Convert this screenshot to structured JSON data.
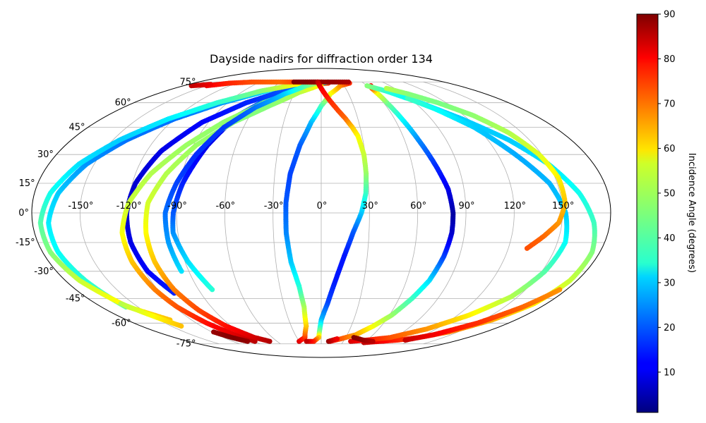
{
  "chart_data": {
    "type": "scatter",
    "projection": "mollweide",
    "title": "Dayside nadirs for diffraction order 134",
    "grid": true,
    "x_ticks": [
      "-150°",
      "-120°",
      "-90°",
      "-60°",
      "-30°",
      "0°",
      "30°",
      "60°",
      "90°",
      "120°",
      "150°"
    ],
    "y_ticks": [
      "75°",
      "60°",
      "45°",
      "30°",
      "15°",
      "0°",
      "-15°",
      "-30°",
      "-45°",
      "-60°",
      "-75°"
    ],
    "colorbar": {
      "label": "Incidence Angle (degrees)",
      "range": [
        1,
        90
      ],
      "ticks": [
        "10",
        "20",
        "30",
        "40",
        "50",
        "60",
        "70",
        "80",
        "90"
      ],
      "colormap": "jet"
    },
    "series": [
      {
        "points": [
          [
            -80,
            -40,
            38
          ],
          [
            -88,
            -25,
            32
          ],
          [
            -93,
            -10,
            25
          ],
          [
            -92,
            0,
            20
          ],
          [
            -88,
            15,
            15
          ],
          [
            -80,
            35,
            10
          ],
          [
            -70,
            52,
            12
          ],
          [
            -55,
            62,
            25
          ],
          [
            -35,
            70,
            42
          ],
          [
            -10,
            73,
            60
          ],
          [
            10,
            74,
            75
          ]
        ]
      },
      {
        "points": [
          [
            -160,
            -50,
            42
          ],
          [
            -166,
            -35,
            38
          ],
          [
            -170,
            -20,
            35
          ],
          [
            -170,
            -5,
            33
          ],
          [
            -165,
            10,
            30
          ],
          [
            -155,
            25,
            25
          ],
          [
            -140,
            38,
            22
          ],
          [
            -120,
            50,
            22
          ],
          [
            -95,
            60,
            25
          ],
          [
            -60,
            69,
            32
          ],
          [
            -20,
            73,
            48
          ],
          [
            10,
            75,
            62
          ]
        ]
      },
      {
        "points": [
          [
            -110,
            -42,
            15
          ],
          [
            -118,
            -30,
            12
          ],
          [
            -121,
            -15,
            10
          ],
          [
            -121,
            0,
            8
          ],
          [
            -118,
            15,
            8
          ],
          [
            -110,
            32,
            10
          ],
          [
            -95,
            48,
            12
          ],
          [
            -72,
            60,
            15
          ],
          [
            -42,
            69,
            20
          ],
          [
            -10,
            73,
            28
          ],
          [
            10,
            75,
            35
          ]
        ]
      },
      {
        "points": [
          [
            -90,
            -73,
            85
          ],
          [
            -100,
            -68,
            82
          ],
          [
            -110,
            -60,
            78
          ],
          [
            -118,
            -50,
            72
          ],
          [
            -122,
            -40,
            68
          ],
          [
            -125,
            -25,
            62
          ],
          [
            -125,
            -10,
            56
          ],
          [
            -120,
            5,
            52
          ],
          [
            -110,
            20,
            50
          ],
          [
            -95,
            35,
            48
          ],
          [
            -78,
            48,
            47
          ],
          [
            -55,
            60,
            47
          ],
          [
            -30,
            68,
            48
          ],
          [
            -5,
            73,
            52
          ]
        ]
      },
      {
        "points": [
          [
            -140,
            -58,
            62
          ],
          [
            -158,
            -50,
            58
          ],
          [
            -170,
            -35,
            52
          ],
          [
            -175,
            -20,
            46
          ],
          [
            -175,
            -5,
            42
          ],
          [
            -170,
            10,
            36
          ],
          [
            -160,
            25,
            32
          ],
          [
            -145,
            38,
            30
          ],
          [
            -125,
            50,
            33
          ],
          [
            -100,
            60,
            38
          ],
          [
            -70,
            68,
            46
          ],
          [
            -35,
            73,
            56
          ],
          [
            0,
            75,
            65
          ]
        ]
      },
      {
        "points": [
          [
            -70,
            -73,
            86
          ],
          [
            -82,
            -70,
            83
          ],
          [
            -95,
            -62,
            78
          ],
          [
            -103,
            -52,
            73
          ],
          [
            -108,
            -40,
            68
          ],
          [
            -110,
            -25,
            62
          ],
          [
            -110,
            -10,
            57
          ],
          [
            -108,
            5,
            53
          ],
          [
            -100,
            20,
            50
          ],
          [
            -88,
            35,
            48
          ],
          [
            -70,
            48,
            46
          ],
          [
            -48,
            58,
            46
          ],
          [
            -25,
            67,
            50
          ],
          [
            0,
            73,
            58
          ]
        ]
      },
      {
        "points": [
          [
            -30,
            -73,
            82
          ],
          [
            -20,
            -70,
            75
          ],
          [
            -15,
            -62,
            62
          ],
          [
            -14,
            -50,
            50
          ],
          [
            -16,
            -38,
            38
          ],
          [
            -20,
            -25,
            30
          ],
          [
            -22,
            -10,
            24
          ],
          [
            -22,
            5,
            20
          ],
          [
            -20,
            20,
            18
          ],
          [
            -15,
            35,
            20
          ],
          [
            -8,
            48,
            28
          ],
          [
            0,
            58,
            40
          ],
          [
            10,
            66,
            55
          ],
          [
            25,
            72,
            66
          ],
          [
            40,
            74,
            75
          ]
        ]
      },
      {
        "points": [
          [
            -95,
            -30,
            32
          ],
          [
            -97,
            -15,
            26
          ],
          [
            -97,
            0,
            22
          ],
          [
            -92,
            15,
            18
          ],
          [
            -85,
            30,
            16
          ],
          [
            -75,
            45,
            17
          ],
          [
            -60,
            57,
            22
          ],
          [
            -40,
            66,
            30
          ],
          [
            -20,
            72,
            42
          ],
          [
            0,
            75,
            52
          ]
        ]
      },
      {
        "points": [
          [
            -150,
            72,
            80
          ],
          [
            -130,
            74,
            76
          ],
          [
            -100,
            75,
            72
          ],
          [
            -60,
            75,
            70
          ],
          [
            -20,
            75,
            75
          ],
          [
            -5,
            75,
            82
          ]
        ]
      },
      {
        "points": [
          [
            -40,
            75,
            90
          ],
          [
            -20,
            75,
            90
          ],
          [
            0,
            75,
            88
          ],
          [
            20,
            75,
            88
          ],
          [
            40,
            75,
            86
          ]
        ]
      },
      {
        "points": [
          [
            -5,
            75,
            85
          ],
          [
            0,
            70,
            80
          ],
          [
            5,
            65,
            78
          ],
          [
            10,
            60,
            75
          ],
          [
            15,
            55,
            73
          ],
          [
            20,
            50,
            70
          ],
          [
            24,
            45,
            62
          ],
          [
            27,
            40,
            57
          ],
          [
            29,
            30,
            52
          ],
          [
            29,
            20,
            48
          ],
          [
            28,
            10,
            40
          ],
          [
            25,
            0,
            30
          ],
          [
            20,
            -10,
            20
          ],
          [
            15,
            -22,
            14
          ],
          [
            10,
            -35,
            14
          ],
          [
            5,
            -48,
            18
          ],
          [
            0,
            -58,
            28
          ],
          [
            -2,
            -66,
            45
          ],
          [
            -3,
            -70,
            62
          ],
          [
            -10,
            -73,
            75
          ],
          [
            -20,
            -73,
            84
          ]
        ]
      },
      {
        "points": [
          [
            12,
            -73,
            80
          ],
          [
            25,
            -71,
            72
          ],
          [
            40,
            -68,
            65
          ],
          [
            52,
            -62,
            56
          ],
          [
            62,
            -55,
            48
          ],
          [
            70,
            -45,
            40
          ],
          [
            76,
            -35,
            32
          ],
          [
            80,
            -22,
            18
          ],
          [
            82,
            -10,
            8
          ],
          [
            82,
            0,
            4
          ],
          [
            80,
            12,
            10
          ],
          [
            75,
            25,
            16
          ],
          [
            70,
            38,
            24
          ],
          [
            66,
            50,
            34
          ],
          [
            63,
            60,
            44
          ],
          [
            62,
            67,
            56
          ],
          [
            62,
            70,
            70
          ],
          [
            65,
            72,
            80
          ]
        ]
      },
      {
        "points": [
          [
            60,
            -74,
            85
          ],
          [
            80,
            -73,
            80
          ],
          [
            100,
            -72,
            76
          ],
          [
            120,
            -70,
            72
          ],
          [
            140,
            -66,
            68
          ],
          [
            158,
            -58,
            64
          ],
          [
            170,
            -48,
            58
          ],
          [
            175,
            -35,
            52
          ],
          [
            175,
            -20,
            46
          ],
          [
            170,
            -5,
            40
          ],
          [
            162,
            10,
            36
          ],
          [
            150,
            25,
            32
          ],
          [
            135,
            38,
            30
          ],
          [
            115,
            50,
            30
          ],
          [
            95,
            60,
            32
          ],
          [
            75,
            68,
            38
          ],
          [
            60,
            72,
            46
          ]
        ]
      },
      {
        "points": [
          [
            40,
            -73,
            82
          ],
          [
            60,
            -72,
            78
          ],
          [
            85,
            -70,
            72
          ],
          [
            110,
            -64,
            66
          ],
          [
            130,
            -55,
            58
          ],
          [
            145,
            -44,
            50
          ],
          [
            152,
            -30,
            42
          ],
          [
            155,
            -15,
            35
          ],
          [
            152,
            0,
            30
          ],
          [
            145,
            15,
            28
          ],
          [
            132,
            30,
            27
          ],
          [
            118,
            45,
            30
          ],
          [
            102,
            56,
            35
          ],
          [
            88,
            63,
            40
          ]
        ]
      },
      {
        "points": [
          [
            110,
            -72,
            84
          ],
          [
            130,
            -68,
            80
          ],
          [
            150,
            -60,
            75
          ],
          [
            165,
            -50,
            70
          ],
          [
            175,
            -40,
            66
          ]
        ]
      },
      {
        "points": [
          [
            132,
            -18,
            72
          ],
          [
            140,
            -12,
            70
          ],
          [
            148,
            -5,
            66
          ],
          [
            152,
            5,
            62
          ],
          [
            152,
            18,
            58
          ],
          [
            148,
            30,
            54
          ],
          [
            140,
            42,
            50
          ],
          [
            128,
            52,
            47
          ],
          [
            112,
            60,
            45
          ],
          [
            95,
            66,
            46
          ],
          [
            80,
            70,
            50
          ]
        ]
      },
      {
        "points": [
          [
            -160,
            -48,
            50
          ],
          [
            -150,
            -55,
            56
          ],
          [
            -140,
            -62,
            62
          ]
        ]
      },
      {
        "points": [
          [
            40,
            -70,
            90
          ],
          [
            55,
            -72,
            88
          ],
          [
            70,
            -73,
            85
          ]
        ]
      },
      {
        "points": [
          [
            -100,
            -73,
            88
          ],
          [
            -110,
            -70,
            90
          ],
          [
            -118,
            -66,
            88
          ]
        ]
      },
      {
        "points": [
          [
            10,
            -73,
            88
          ],
          [
            20,
            -71,
            80
          ]
        ]
      },
      {
        "points": [
          [
            -150,
            73,
            80
          ],
          [
            -170,
            72,
            84
          ]
        ]
      }
    ]
  }
}
